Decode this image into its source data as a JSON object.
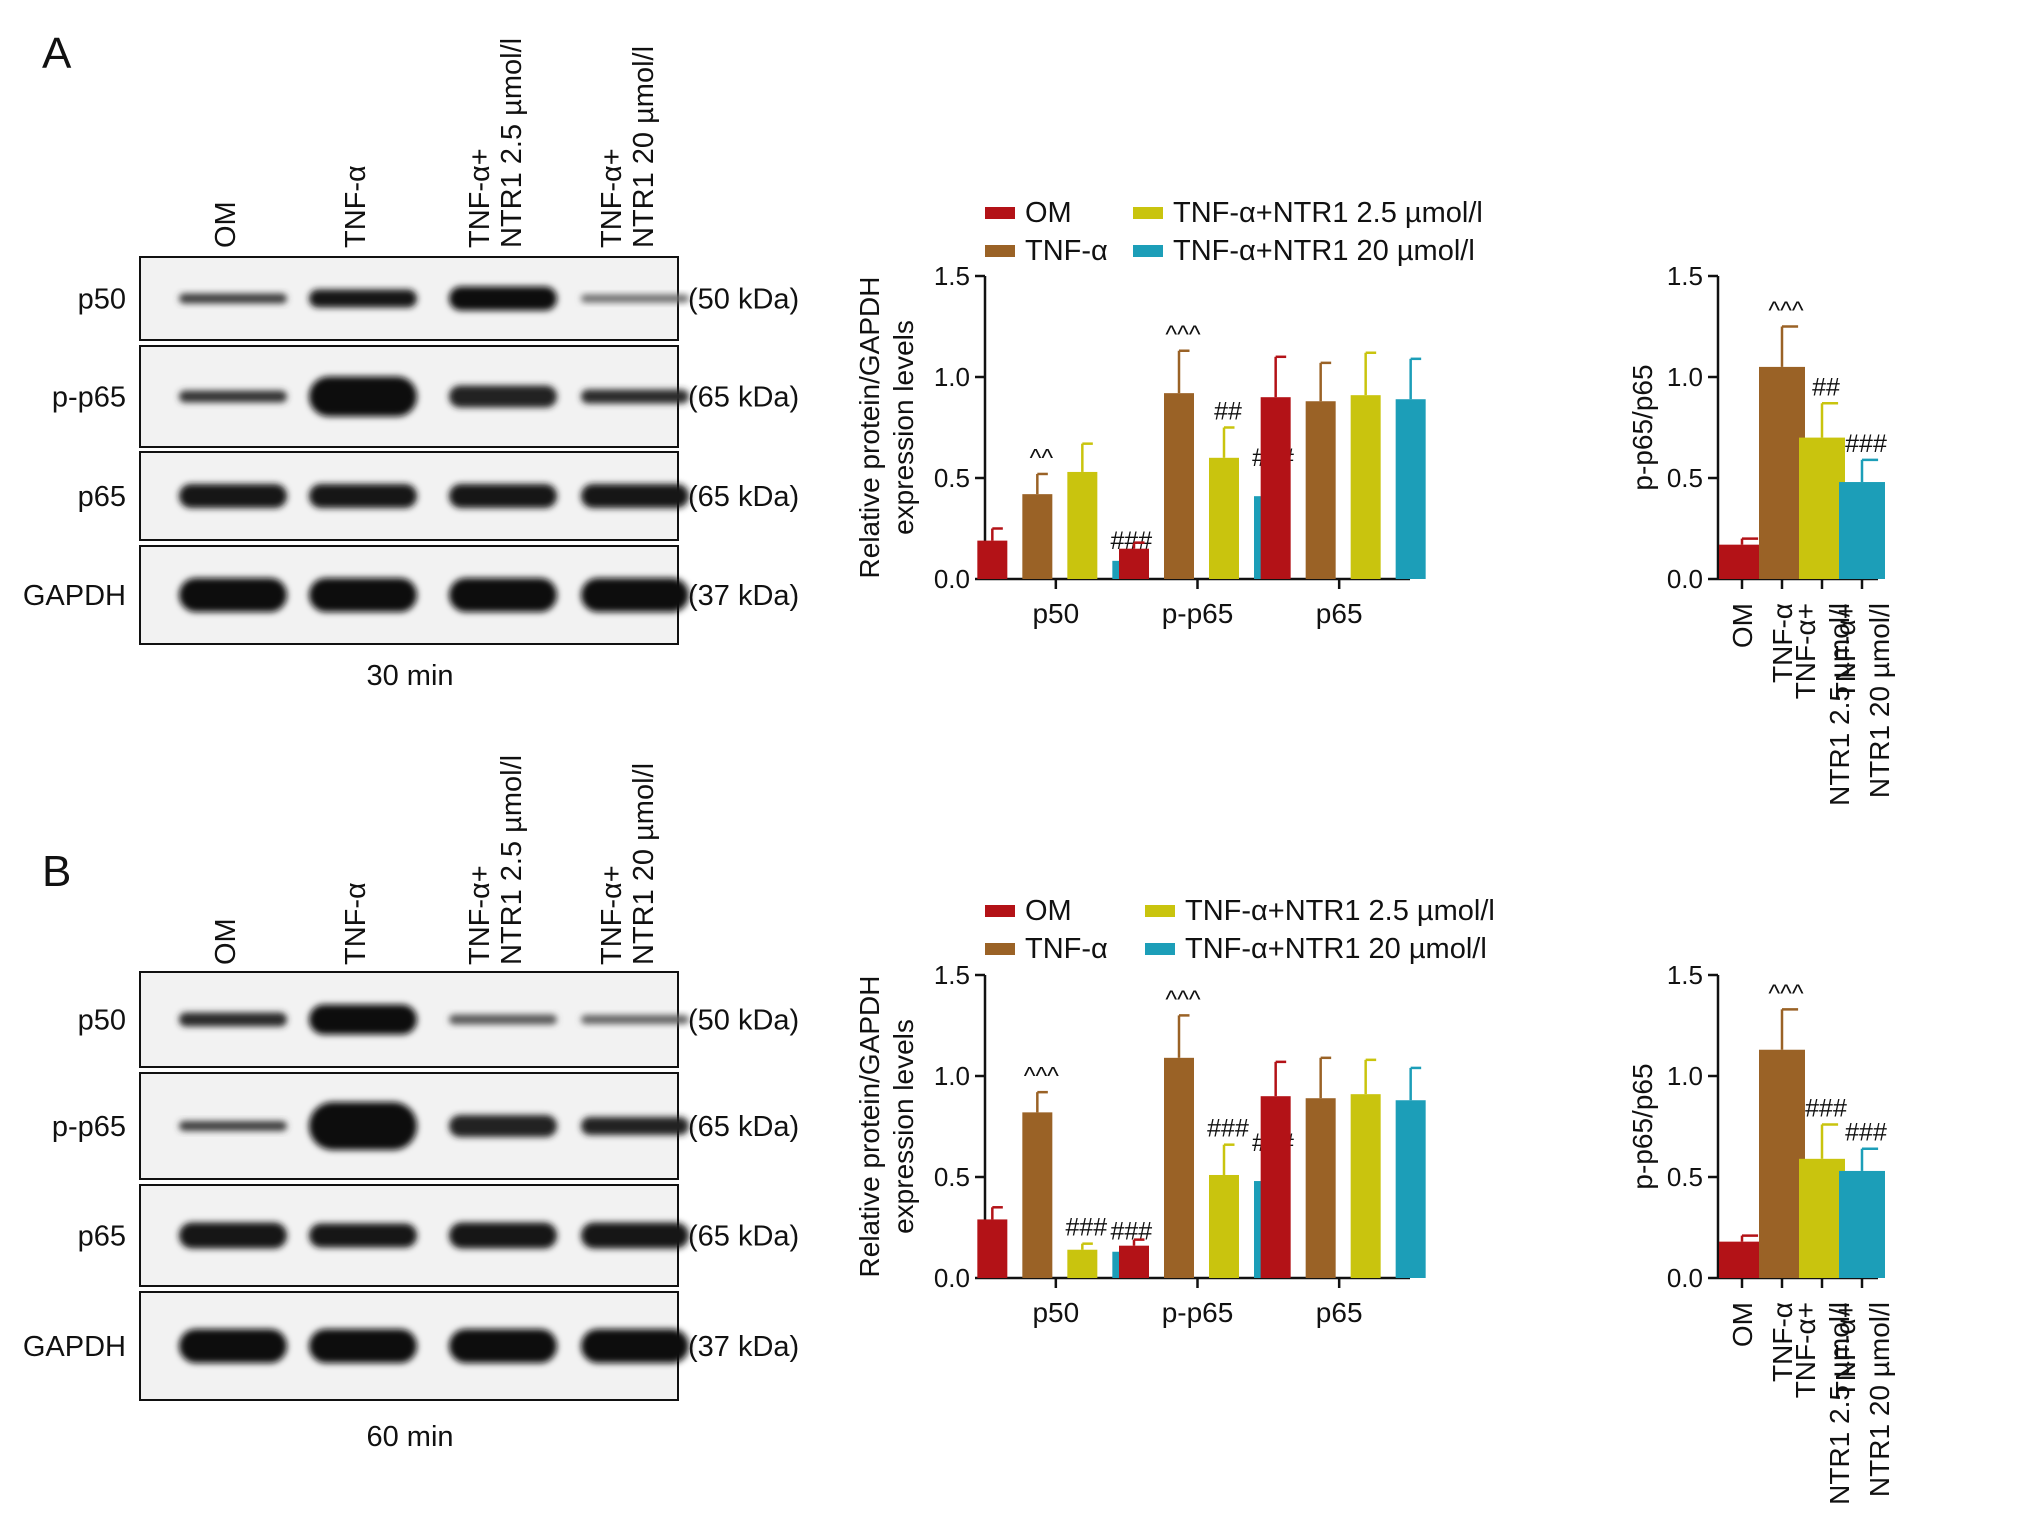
{
  "legend_labels": [
    "OM",
    "TNF-α",
    "TNF-α+NTR1 2.5 µmol/l",
    "TNF-α+NTR1 20 µmol/l"
  ],
  "colors": {
    "OM": "#b31217",
    "TNF-α": "#9a6226",
    "TNF-α+NTR1 2.5 µmol/l": "#c9c40e",
    "TNF-α+NTR1 20 µmol/l": "#1c9eb8"
  },
  "blot_panels": [
    {
      "panel": "A",
      "time": "30 min",
      "lanes": [
        [
          "OM"
        ],
        [
          "TNF-α"
        ],
        [
          "TNF-α+",
          "NTR1 2.5 µmol/l"
        ],
        [
          "TNF-α+",
          "NTR1 20 µmol/l"
        ]
      ],
      "rows": [
        {
          "protein": "p50",
          "kda": "(50 kDa)"
        },
        {
          "protein": "p-p65",
          "kda": "(65 kDa)"
        },
        {
          "protein": "p65",
          "kda": "(65 kDa)"
        },
        {
          "protein": "GAPDH",
          "kda": "(37 kDa)"
        }
      ]
    },
    {
      "panel": "B",
      "time": "60 min",
      "lanes": [
        [
          "OM"
        ],
        [
          "TNF-α"
        ],
        [
          "TNF-α+",
          "NTR1 2.5 µmol/l"
        ],
        [
          "TNF-α+",
          "NTR1 20 µmol/l"
        ]
      ],
      "rows": [
        {
          "protein": "p50",
          "kda": "(50 kDa)"
        },
        {
          "protein": "p-p65",
          "kda": "(65 kDa)"
        },
        {
          "protein": "p65",
          "kda": "(65 kDa)"
        },
        {
          "protein": "GAPDH",
          "kda": "(37 kDa)"
        }
      ]
    }
  ],
  "chart_data": [
    {
      "panel": "A",
      "type": "bar",
      "ylabel": [
        "Relative protein/GAPDH",
        "expression levels"
      ],
      "ylim": [
        0,
        1.5
      ],
      "yticks": [
        "0.0",
        "0.5",
        "1.0",
        "1.5"
      ],
      "categories": [
        "p50",
        "p-p65",
        "p65"
      ],
      "series": [
        {
          "name": "OM",
          "values": [
            0.19,
            0.15,
            0.9
          ],
          "errors": [
            0.06,
            0.03,
            0.2
          ],
          "marks": [
            "",
            "",
            ""
          ]
        },
        {
          "name": "TNF-α",
          "values": [
            0.42,
            0.92,
            0.88
          ],
          "errors": [
            0.1,
            0.21,
            0.19
          ],
          "marks": [
            "^^",
            "^^^",
            ""
          ]
        },
        {
          "name": "TNF-α+NTR1 2.5 µmol/l",
          "values": [
            0.53,
            0.6,
            0.91
          ],
          "errors": [
            0.14,
            0.15,
            0.21
          ],
          "marks": [
            "",
            "##",
            ""
          ]
        },
        {
          "name": "TNF-α+NTR1 20 µmol/l",
          "values": [
            0.09,
            0.41,
            0.89
          ],
          "errors": [
            0.02,
            0.11,
            0.2
          ],
          "marks": [
            "###",
            "###",
            ""
          ]
        }
      ]
    },
    {
      "panel": "A",
      "type": "bar",
      "ylabel": [
        "p-p65/p65"
      ],
      "ylim": [
        0,
        1.5
      ],
      "yticks": [
        "0.0",
        "0.5",
        "1.0",
        "1.5"
      ],
      "categories": [
        [
          "OM"
        ],
        [
          "TNF-α"
        ],
        [
          "TNF-α+",
          "NTR1 2.5 µmol/l"
        ],
        [
          "TNF-α+",
          "NTR1 20 µmol/l"
        ]
      ],
      "values": [
        0.17,
        1.05,
        0.7,
        0.48
      ],
      "errors": [
        0.03,
        0.2,
        0.17,
        0.11
      ],
      "marks": [
        "",
        "^^^",
        "##",
        "###"
      ]
    },
    {
      "panel": "B",
      "type": "bar",
      "ylabel": [
        "Relative protein/GAPDH",
        "expression levels"
      ],
      "ylim": [
        0,
        1.5
      ],
      "yticks": [
        "0.0",
        "0.5",
        "1.0",
        "1.5"
      ],
      "categories": [
        "p50",
        "p-p65",
        "p65"
      ],
      "series": [
        {
          "name": "OM",
          "values": [
            0.29,
            0.16,
            0.9
          ],
          "errors": [
            0.06,
            0.03,
            0.17
          ],
          "marks": [
            "",
            "",
            ""
          ]
        },
        {
          "name": "TNF-α",
          "values": [
            0.82,
            1.09,
            0.89
          ],
          "errors": [
            0.1,
            0.21,
            0.2
          ],
          "marks": [
            "^^^",
            "^^^",
            ""
          ]
        },
        {
          "name": "TNF-α+NTR1 2.5 µmol/l",
          "values": [
            0.14,
            0.51,
            0.91
          ],
          "errors": [
            0.03,
            0.15,
            0.17
          ],
          "marks": [
            "###",
            "###",
            ""
          ]
        },
        {
          "name": "TNF-α+NTR1 20 µmol/l",
          "values": [
            0.13,
            0.48,
            0.88
          ],
          "errors": [
            0.02,
            0.11,
            0.16
          ],
          "marks": [
            "###",
            "###",
            ""
          ]
        }
      ]
    },
    {
      "panel": "B",
      "type": "bar",
      "ylabel": [
        "p-p65/p65"
      ],
      "ylim": [
        0,
        1.5
      ],
      "yticks": [
        "0.0",
        "0.5",
        "1.0",
        "1.5"
      ],
      "categories": [
        [
          "OM"
        ],
        [
          "TNF-α"
        ],
        [
          "TNF-α+",
          "NTR1 2.5 µmol/l"
        ],
        [
          "TNF-α+",
          "NTR1 20 µmol/l"
        ]
      ],
      "values": [
        0.18,
        1.13,
        0.59,
        0.53
      ],
      "errors": [
        0.03,
        0.2,
        0.17,
        0.11
      ],
      "marks": [
        "",
        "^^^",
        "###",
        "###"
      ]
    }
  ]
}
